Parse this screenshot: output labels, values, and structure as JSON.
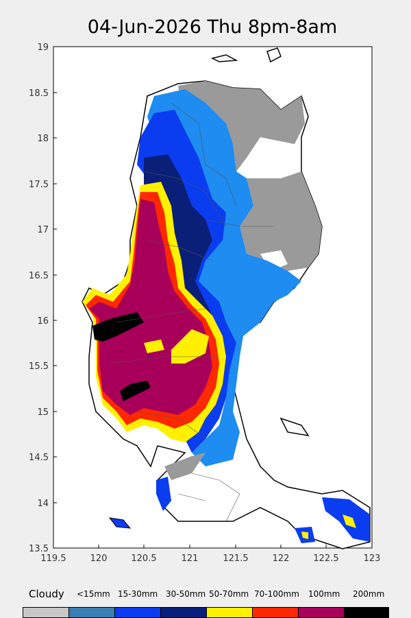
{
  "title": "04-Jun-2026 Thu 8pm-8am",
  "axes": {
    "x_ticks": [
      "119.5",
      "120",
      "120.5",
      "121",
      "121.5",
      "122",
      "122.5",
      "123"
    ],
    "y_ticks": [
      "19",
      "18.5",
      "18",
      "17.5",
      "17",
      "16.5",
      "16",
      "15.5",
      "15",
      "14.5",
      "14",
      "13.5"
    ]
  },
  "legend": [
    {
      "label": "Cloudy",
      "color": "#c8c8c8"
    },
    {
      "label": "<15mm",
      "color": "#3a7fb4"
    },
    {
      "label": "15-30mm",
      "color": "#0a3cf0"
    },
    {
      "label": "30-50mm",
      "color": "#0a1f78"
    },
    {
      "label": "50-70mm",
      "color": "#fff000"
    },
    {
      "label": "70-100mm",
      "color": "#ff2800"
    },
    {
      "label": "100mm",
      "color": "#a8005a"
    },
    {
      "label": "200mm",
      "color": "#000000"
    }
  ],
  "map_colors": {
    "cloudy": "#9a9a9a",
    "light_blue": "#1e8cf0",
    "blue": "#0a3cf0",
    "navy": "#0a1f78",
    "yellow": "#fff000",
    "red": "#ff2800",
    "magenta": "#a8005a",
    "black": "#000000"
  }
}
